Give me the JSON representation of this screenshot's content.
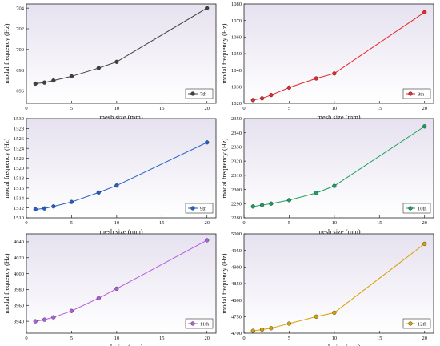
{
  "chart_data": [
    {
      "type": "line",
      "xlabel": "mesh size (mm)",
      "ylabel": "modal frequency (Hz)",
      "xlim": [
        0,
        21
      ],
      "ylim": [
        694.8,
        704.4
      ],
      "xticks": [
        0,
        5,
        10,
        15,
        20
      ],
      "yticks": [
        696,
        698,
        700,
        702,
        704
      ],
      "legend_position": "bottom-right",
      "series": [
        {
          "name": "7th",
          "color": "#404040",
          "x": [
            1,
            2,
            3,
            5,
            8,
            10,
            20
          ],
          "values": [
            696.7,
            696.8,
            697.0,
            697.4,
            698.2,
            698.8,
            704.0
          ]
        }
      ]
    },
    {
      "type": "line",
      "xlabel": "mesh size (mm)",
      "ylabel": "modal frequency (Hz)",
      "xlim": [
        0,
        21
      ],
      "ylim": [
        1020,
        1080
      ],
      "xticks": [
        0,
        5,
        10,
        15,
        20
      ],
      "yticks": [
        1020,
        1030,
        1040,
        1050,
        1060,
        1070,
        1080
      ],
      "legend_position": "bottom-right",
      "series": [
        {
          "name": "8th",
          "color": "#e8262b",
          "x": [
            1,
            2,
            3,
            5,
            8,
            10,
            20
          ],
          "values": [
            1022,
            1023,
            1025,
            1029.5,
            1035,
            1038,
            1075
          ]
        }
      ]
    },
    {
      "type": "line",
      "xlabel": "mesh size (mm)",
      "ylabel": "modal frequency (Hz)",
      "xlim": [
        0,
        21
      ],
      "ylim": [
        1510,
        1530
      ],
      "xticks": [
        0,
        5,
        10,
        15,
        20
      ],
      "yticks": [
        1510,
        1512,
        1514,
        1516,
        1518,
        1520,
        1522,
        1524,
        1526,
        1528,
        1530
      ],
      "legend_position": "bottom-right",
      "series": [
        {
          "name": "9th",
          "color": "#1f5fc8",
          "x": [
            1,
            2,
            3,
            5,
            8,
            10,
            20
          ],
          "values": [
            1511.7,
            1511.9,
            1512.3,
            1513.2,
            1515.1,
            1516.5,
            1525.2
          ]
        }
      ]
    },
    {
      "type": "line",
      "xlabel": "mesh size (mm)",
      "ylabel": "modal frequency (Hz)",
      "xlim": [
        0,
        21
      ],
      "ylim": [
        2280,
        2350
      ],
      "xticks": [
        0,
        5,
        10,
        15,
        20
      ],
      "yticks": [
        2280,
        2290,
        2300,
        2310,
        2320,
        2330,
        2340,
        2350
      ],
      "legend_position": "bottom-right",
      "series": [
        {
          "name": "10th",
          "color": "#17a05a",
          "x": [
            1,
            2,
            3,
            5,
            8,
            10,
            20
          ],
          "values": [
            2288,
            2289,
            2290,
            2292.5,
            2297.5,
            2302.5,
            2344.5
          ]
        }
      ]
    },
    {
      "type": "line",
      "xlabel": "mesh size (mm)",
      "ylabel": "modal frequency (Hz)",
      "xlim": [
        0,
        21
      ],
      "ylim": [
        3925,
        4050
      ],
      "xticks": [
        0,
        5,
        10,
        15,
        20
      ],
      "yticks": [
        3940,
        3960,
        3980,
        4000,
        4020,
        4040
      ],
      "legend_position": "bottom-right",
      "series": [
        {
          "name": "11th",
          "color": "#b05ce0",
          "x": [
            1,
            2,
            3,
            5,
            8,
            10,
            20
          ],
          "values": [
            3940,
            3942,
            3945,
            3953,
            3969,
            3981,
            4042
          ]
        }
      ]
    },
    {
      "type": "line",
      "xlabel": "mesh size (mm)",
      "ylabel": "modal frequency (Hz)",
      "xlim": [
        0,
        21
      ],
      "ylim": [
        4700,
        5000
      ],
      "xticks": [
        0,
        5,
        10,
        15,
        20
      ],
      "yticks": [
        4700,
        4750,
        4800,
        4850,
        4900,
        4950,
        5000
      ],
      "legend_position": "bottom-right",
      "series": [
        {
          "name": "12th",
          "color": "#d8a000",
          "x": [
            1,
            2,
            3,
            5,
            8,
            10,
            20
          ],
          "values": [
            4707,
            4711,
            4715,
            4729,
            4750,
            4762,
            4970
          ]
        }
      ]
    }
  ]
}
